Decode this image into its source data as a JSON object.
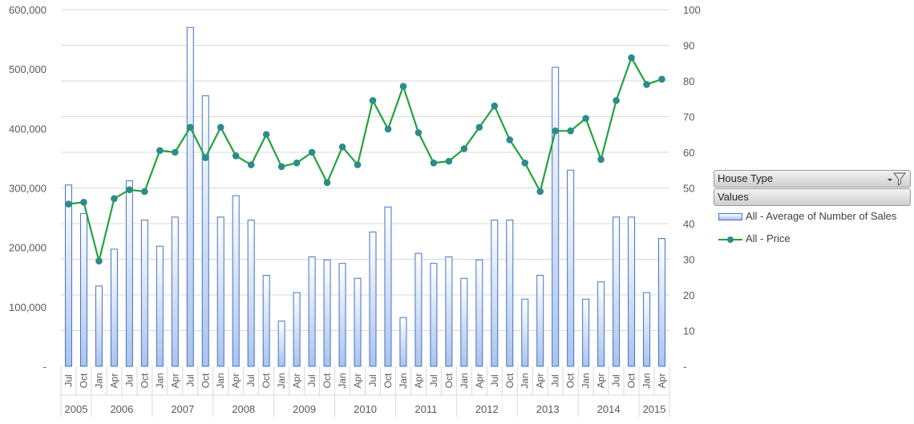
{
  "chart_data": {
    "type": "bar+line",
    "categories": [
      "Jul",
      "Oct",
      "Jan",
      "Apr",
      "Jul",
      "Oct",
      "Jan",
      "Apr",
      "Jul",
      "Oct",
      "Jan",
      "Apr",
      "Jul",
      "Oct",
      "Jan",
      "Apr",
      "Jul",
      "Oct",
      "Jan",
      "Apr",
      "Jul",
      "Oct",
      "Jan",
      "Apr",
      "Jul",
      "Oct",
      "Jan",
      "Apr",
      "Jul",
      "Oct",
      "Jan",
      "Apr",
      "Jul",
      "Oct",
      "Jan",
      "Apr",
      "Jul",
      "Oct",
      "Jan",
      "Apr"
    ],
    "year_groups": [
      {
        "label": "2005",
        "count": 2
      },
      {
        "label": "2006",
        "count": 4
      },
      {
        "label": "2007",
        "count": 4
      },
      {
        "label": "2008",
        "count": 4
      },
      {
        "label": "2009",
        "count": 4
      },
      {
        "label": "2010",
        "count": 4
      },
      {
        "label": "2011",
        "count": 4
      },
      {
        "label": "2012",
        "count": 4
      },
      {
        "label": "2013",
        "count": 4
      },
      {
        "label": "2014",
        "count": 4
      },
      {
        "label": "2015",
        "count": 2
      }
    ],
    "series": [
      {
        "name": "All - Average of Number of Sales",
        "type": "bar",
        "axis": "left",
        "values": [
          305000,
          257000,
          135000,
          197000,
          312000,
          246000,
          202000,
          251000,
          570000,
          455000,
          251000,
          287000,
          246000,
          153000,
          76000,
          124000,
          184000,
          179000,
          173000,
          148000,
          226000,
          268000,
          82000,
          190000,
          173000,
          184000,
          148000,
          179000,
          246000,
          246000,
          113000,
          153000,
          503000,
          330000,
          113000,
          142000,
          251000,
          251000,
          124000,
          215000
        ]
      },
      {
        "name": "All - Price",
        "type": "line",
        "axis": "right",
        "values": [
          45.5,
          46,
          29.5,
          47,
          49.5,
          49,
          60.5,
          60,
          67,
          58.5,
          67,
          59,
          56.5,
          65,
          56,
          57,
          60,
          51.5,
          61.5,
          56.5,
          74.5,
          66.5,
          78.5,
          65.5,
          57,
          57.5,
          61,
          67,
          73,
          63.5,
          57,
          49,
          66,
          66,
          69.5,
          58,
          74.5,
          86.5,
          79,
          80.5
        ]
      }
    ],
    "y_left": {
      "min": 0,
      "max": 600000,
      "ticks": [
        "-",
        "100,000",
        "200,000",
        "300,000",
        "400,000",
        "500,000",
        "600,000"
      ]
    },
    "y_right": {
      "min": 0,
      "max": 100,
      "ticks": [
        "-",
        "10",
        "20",
        "30",
        "40",
        "50",
        "60",
        "70",
        "80",
        "90",
        "100"
      ]
    },
    "grid": true,
    "legend_position": "right",
    "colors": {
      "bar_fill_top": "#ffffff",
      "bar_fill_bottom": "#aac4ee",
      "bar_border": "#4472c4",
      "line": "#22a33b",
      "marker": "#2e8b8b",
      "grid": "#d9d9d9"
    }
  },
  "field_buttons": {
    "house_type": "House Type",
    "values": "Values"
  },
  "legend": {
    "bar_label": "All - Average of Number of Sales",
    "line_label": "All - Price"
  },
  "icons": {
    "filter": "filter-dropdown-icon"
  }
}
